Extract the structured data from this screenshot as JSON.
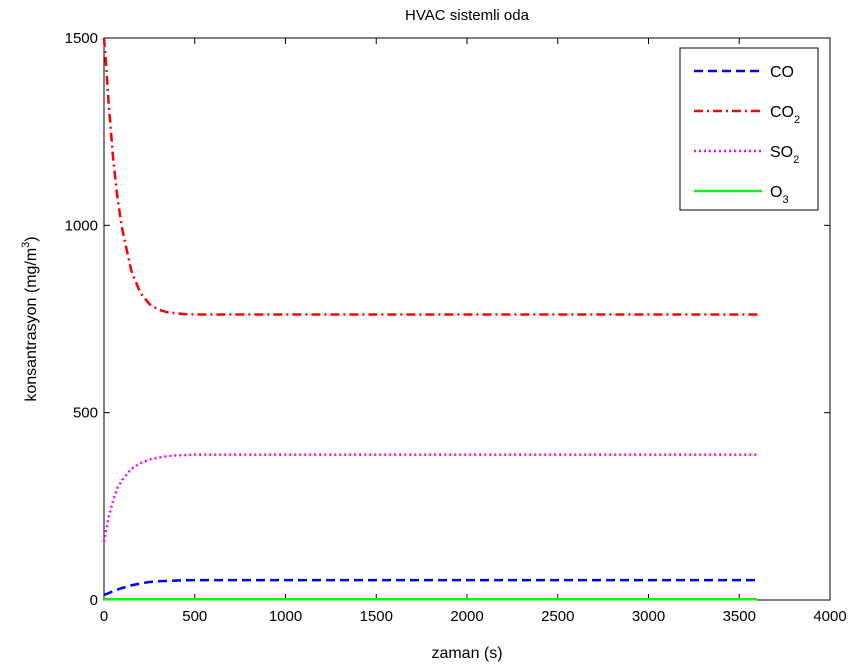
{
  "chart_data": {
    "type": "line",
    "title": "HVAC sistemli oda",
    "xlabel": "zaman (s)",
    "ylabel": {
      "base": "konsantrasyon (mg/m",
      "sup": "3",
      "tail": ")"
    },
    "xlim": [
      0,
      4000
    ],
    "ylim": [
      0,
      1500
    ],
    "xticks": [
      0,
      500,
      1000,
      1500,
      2000,
      2500,
      3000,
      3500,
      4000
    ],
    "yticks": [
      0,
      500,
      1000,
      1500
    ],
    "grid": false,
    "legend_position": "top-right",
    "series": [
      {
        "key": "co",
        "name": {
          "base": "CO",
          "sub": ""
        },
        "color": "#0000ff",
        "dash": "dashed",
        "x": [
          0,
          25,
          50,
          100,
          150,
          200,
          250,
          300,
          400,
          500,
          1000,
          2000,
          3000,
          3600
        ],
        "y": [
          14,
          18,
          24,
          32,
          39,
          44,
          48,
          50,
          52,
          53,
          53,
          53,
          53,
          53
        ]
      },
      {
        "key": "co2",
        "name": {
          "base": "CO",
          "sub": "2"
        },
        "color": "#ff0000",
        "dash": "dashdot",
        "x": [
          0,
          10,
          25,
          50,
          75,
          100,
          150,
          200,
          250,
          300,
          350,
          400,
          450,
          500,
          600,
          1000,
          2000,
          3000,
          3600
        ],
        "y": [
          1500,
          1440,
          1330,
          1180,
          1070,
          990,
          880,
          820,
          790,
          775,
          768,
          765,
          763,
          762,
          762,
          762,
          762,
          762,
          762
        ]
      },
      {
        "key": "so2",
        "name": {
          "base": "SO",
          "sub": "2"
        },
        "color": "#ff00ff",
        "dash": "dotted",
        "x": [
          0,
          25,
          50,
          75,
          100,
          150,
          200,
          250,
          300,
          350,
          400,
          500,
          600,
          1000,
          2000,
          3000,
          3600
        ],
        "y": [
          155,
          220,
          265,
          300,
          320,
          350,
          365,
          375,
          380,
          384,
          386,
          388,
          388,
          388,
          388,
          388,
          388
        ]
      },
      {
        "key": "o3",
        "name": {
          "base": "O",
          "sub": "3"
        },
        "color": "#00ff00",
        "dash": "solid",
        "x": [
          0,
          500,
          1000,
          2000,
          3000,
          3600
        ],
        "y": [
          2,
          2,
          2,
          2,
          2,
          2
        ]
      }
    ]
  }
}
